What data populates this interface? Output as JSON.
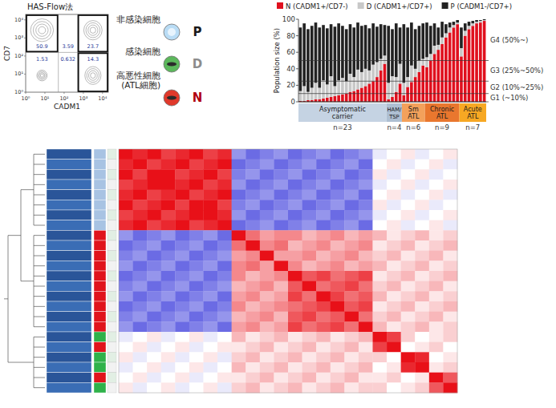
{
  "chart_data": [
    {
      "type": "flow_cytometry",
      "title": "HAS-Flow法",
      "x_label": "CADM1",
      "y_label": "CD7",
      "xlim": [
        0,
        4.3
      ],
      "ylim": [
        0,
        4.3
      ],
      "xticks": [
        {
          "value": 0,
          "label": "10⁰"
        },
        {
          "value": 1,
          "label": "10¹"
        },
        {
          "value": 2,
          "label": "10²"
        },
        {
          "value": 3,
          "label": "10³"
        },
        {
          "value": 4,
          "label": "10⁴"
        }
      ],
      "yticks": [
        {
          "value": 0,
          "label": "10⁰"
        },
        {
          "value": 1,
          "label": "10¹"
        },
        {
          "value": 2,
          "label": "10²"
        },
        {
          "value": 3,
          "label": "10³"
        },
        {
          "value": 4,
          "label": "10⁴"
        }
      ],
      "x_gates": [
        1.7,
        2.7
      ],
      "y_gate": 2.2,
      "gate_values": [
        [
          50.9,
          3.59,
          23.7
        ],
        [
          1.53,
          0.632,
          14.3
        ]
      ],
      "populations": [
        {
          "label": "非感染細胞",
          "letter": "P",
          "color": "#b9dcf5"
        },
        {
          "label": "感染細胞",
          "letter": "D",
          "color": "#5cb85c"
        },
        {
          "label": "高悪性細胞(ATL細胞)",
          "letter": "N",
          "color": "#e0392b"
        }
      ]
    },
    {
      "type": "bar",
      "stacked": true,
      "legend": "top",
      "grid": false,
      "ylabel": "Population size (%)",
      "ylim": [
        0,
        100
      ],
      "yticks": [
        0,
        20,
        40,
        60,
        80,
        100
      ],
      "categories": [
        null,
        null,
        null,
        null,
        null,
        null,
        null,
        null,
        null,
        null,
        null,
        null,
        null,
        null,
        null,
        null,
        null,
        null,
        null,
        null,
        null,
        null,
        null,
        null,
        null,
        null,
        null,
        null,
        null,
        null,
        null,
        null,
        null,
        null,
        null,
        null,
        null,
        null,
        null,
        null,
        null,
        null,
        null,
        null,
        null,
        null,
        null,
        null,
        null
      ],
      "series": [
        {
          "name": "N (CADM1+/CD7-)",
          "color": "#e0101e",
          "values": [
            1,
            1,
            2,
            2,
            3,
            3,
            4,
            5,
            6,
            7,
            8,
            9,
            10,
            12,
            13,
            15,
            17,
            19,
            22,
            25,
            30,
            38,
            46,
            3,
            6,
            12,
            22,
            8,
            18,
            24,
            30,
            36,
            44,
            42,
            50,
            58,
            63,
            70,
            78,
            84,
            90,
            94,
            55,
            80,
            88,
            92,
            95,
            96,
            98
          ]
        },
        {
          "name": "D (CADM1+/CD7+)",
          "color": "#c8c8c8",
          "values": [
            12,
            18,
            10,
            15,
            20,
            14,
            22,
            16,
            25,
            12,
            18,
            20,
            15,
            22,
            17,
            24,
            19,
            21,
            16,
            20,
            18,
            14,
            10,
            20,
            25,
            18,
            24,
            15,
            12,
            20,
            10,
            14,
            8,
            12,
            8,
            10,
            6,
            8,
            5,
            6,
            3,
            2,
            10,
            6,
            4,
            3,
            2,
            2,
            1
          ]
        },
        {
          "name": "P (CADM1-/CD7+)",
          "color": "#222222",
          "values": [
            77,
            76,
            76,
            75,
            73,
            73,
            67,
            68,
            63,
            72,
            69,
            63,
            63,
            60,
            60,
            57,
            56,
            53,
            51,
            50,
            43,
            42,
            37,
            69,
            57,
            65,
            44,
            71,
            60,
            52,
            48,
            42,
            43,
            42,
            34,
            27,
            21,
            19,
            11,
            6,
            4,
            3,
            25,
            9,
            5,
            3,
            2,
            1,
            1
          ]
        }
      ],
      "bands": [
        {
          "from": 50,
          "to": 100,
          "label": "G4 (50%~)"
        },
        {
          "from": 25,
          "to": 50,
          "label": "G3 (25%~50%)"
        },
        {
          "from": 10,
          "to": 25,
          "label": "G2 (10%~25%)"
        },
        {
          "from": 0,
          "to": 10,
          "label": "G1 (~10%)"
        }
      ],
      "groups": [
        {
          "label": "Asymptomatic carrier",
          "n_label": "n=23",
          "count": 23,
          "color": "#c5d3e3"
        },
        {
          "label": "HAM/TSP",
          "n_label": "n=4",
          "count": 4,
          "color": "#aebfd2"
        },
        {
          "label": "Sm ATL",
          "n_label": "n=6",
          "count": 6,
          "color": "#f3a15b"
        },
        {
          "label": "Chronic ATL",
          "n_label": "n=9",
          "count": 9,
          "color": "#e9772e"
        },
        {
          "label": "Acute ATL",
          "n_label": "n=7",
          "count": 7,
          "color": "#f7a823"
        }
      ]
    },
    {
      "type": "heatmap",
      "tick_labels": false,
      "color_range": [
        -1,
        1
      ],
      "row_clusters": [
        8,
        10,
        6
      ],
      "row_colors": [
        "#a8c3e3",
        "#a8c3e3",
        "#a8c3e3",
        "#a8c3e3",
        "#a8c3e3",
        "#a8c3e3",
        "#a8c3e3",
        "#a8c3e3",
        "#e0141c",
        "#e0141c",
        "#e0141c",
        "#e0141c",
        "#e0141c",
        "#e0141c",
        "#e0141c",
        "#e0141c",
        "#e0141c",
        "#e0141c",
        "#2fb24a",
        "#e0141c",
        "#2fb24a",
        "#2fb24a",
        "#e0141c",
        "#2fb24a"
      ],
      "cells": [
        [
          1,
          0.9,
          1,
          0.8,
          0.9,
          1,
          0.8,
          0.9,
          -0.5,
          -0.7,
          -0.6,
          -0.5,
          -0.7,
          -0.6,
          -0.5,
          -0.7,
          -0.6,
          -0.5,
          -0.1,
          0,
          0.1,
          -0.1,
          0,
          0.1
        ],
        [
          0.9,
          1,
          0.8,
          0.9,
          1,
          0.8,
          0.9,
          1,
          -0.7,
          -0.6,
          -0.5,
          -0.7,
          -0.6,
          -0.5,
          -0.7,
          -0.6,
          -0.5,
          -0.7,
          0,
          0.1,
          -0.1,
          0,
          0.1,
          -0.1
        ],
        [
          1,
          0.8,
          1,
          1,
          0.8,
          0.9,
          1,
          0.8,
          -0.6,
          -0.5,
          -0.7,
          -0.6,
          -0.5,
          -0.7,
          -0.6,
          -0.5,
          -0.7,
          -0.6,
          0.1,
          -0.1,
          0,
          0.1,
          -0.1,
          0
        ],
        [
          0.8,
          0.9,
          1,
          1,
          0.9,
          1,
          0.8,
          0.9,
          -0.5,
          -0.7,
          -0.6,
          -0.5,
          -0.7,
          -0.6,
          -0.5,
          -0.7,
          -0.6,
          -0.5,
          -0.1,
          0,
          0.1,
          -0.1,
          0,
          0.1
        ],
        [
          0.9,
          1,
          0.8,
          0.9,
          1,
          0.8,
          0.9,
          1,
          -0.7,
          -0.6,
          -0.5,
          -0.7,
          -0.6,
          -0.5,
          -0.7,
          -0.6,
          -0.5,
          -0.7,
          0,
          0.1,
          -0.1,
          0,
          0.1,
          -0.1
        ],
        [
          1,
          0.8,
          0.9,
          1,
          0.8,
          1,
          1,
          0.8,
          -0.6,
          -0.5,
          -0.7,
          -0.6,
          -0.5,
          -0.7,
          -0.6,
          -0.5,
          -0.7,
          -0.6,
          0.1,
          -0.1,
          0,
          0.1,
          -0.1,
          0
        ],
        [
          0.8,
          0.9,
          1,
          0.8,
          0.9,
          1,
          1,
          0.9,
          -0.5,
          -0.7,
          -0.6,
          -0.5,
          -0.7,
          -0.6,
          -0.5,
          -0.7,
          -0.6,
          -0.5,
          -0.1,
          0,
          0.1,
          -0.1,
          0,
          0.1
        ],
        [
          0.9,
          1,
          0.8,
          0.9,
          1,
          0.8,
          0.9,
          1,
          -0.7,
          -0.6,
          -0.5,
          -0.7,
          -0.6,
          -0.5,
          -0.7,
          -0.6,
          -0.5,
          -0.7,
          0,
          0.1,
          -0.1,
          0,
          0.1,
          -0.1
        ],
        [
          -0.5,
          -0.7,
          -0.6,
          -0.5,
          -0.7,
          -0.6,
          -0.5,
          -0.7,
          1,
          0.6,
          0.4,
          0.5,
          0.5,
          0.3,
          0.4,
          0.5,
          0.3,
          0.4,
          0.3,
          0.1,
          0.2,
          0.3,
          0.1,
          0.2
        ],
        [
          -0.7,
          -0.6,
          -0.5,
          -0.7,
          -0.6,
          -0.5,
          -0.7,
          -0.6,
          0.6,
          1,
          0.5,
          0.6,
          0.3,
          0.4,
          0.5,
          0.3,
          0.4,
          0.5,
          0.1,
          0.2,
          0.3,
          0.1,
          0.2,
          0.3
        ],
        [
          -0.6,
          -0.5,
          -0.7,
          -0.6,
          -0.5,
          -0.7,
          -0.6,
          -0.5,
          0.4,
          0.5,
          1,
          0.4,
          0.4,
          0.5,
          0.3,
          0.4,
          0.5,
          0.3,
          0.2,
          0.3,
          0.1,
          0.2,
          0.3,
          0.1
        ],
        [
          -0.5,
          -0.7,
          -0.6,
          -0.5,
          -0.7,
          -0.6,
          -0.5,
          -0.7,
          0.5,
          0.6,
          0.4,
          1,
          0.5,
          0.3,
          0.4,
          0.5,
          0.3,
          0.4,
          0.3,
          0.1,
          0.2,
          0.3,
          0.1,
          0.2
        ],
        [
          -0.7,
          -0.6,
          -0.5,
          -0.7,
          -0.6,
          -0.5,
          -0.7,
          -0.6,
          0.5,
          0.3,
          0.4,
          0.5,
          1,
          0.7,
          0.8,
          0.6,
          0.7,
          0.8,
          0.1,
          0.2,
          0.3,
          0.1,
          0.2,
          0.3
        ],
        [
          -0.6,
          -0.5,
          -0.7,
          -0.6,
          -0.5,
          -0.7,
          -0.6,
          -0.5,
          0.3,
          0.4,
          0.5,
          0.3,
          0.7,
          1,
          0.6,
          0.7,
          0.8,
          0.6,
          0.2,
          0.3,
          0.1,
          0.2,
          0.3,
          0.1
        ],
        [
          -0.5,
          -0.7,
          -0.6,
          -0.5,
          -0.7,
          -0.6,
          -0.5,
          -0.7,
          0.4,
          0.5,
          0.3,
          0.4,
          0.8,
          0.6,
          1,
          0.8,
          0.6,
          0.7,
          0.3,
          0.1,
          0.2,
          0.3,
          0.1,
          0.2
        ],
        [
          -0.7,
          -0.6,
          -0.5,
          -0.7,
          -0.6,
          -0.5,
          -0.7,
          -0.6,
          0.5,
          0.3,
          0.4,
          0.5,
          0.6,
          0.7,
          0.8,
          1,
          0.7,
          0.8,
          0.1,
          0.2,
          0.3,
          0.1,
          0.2,
          0.3
        ],
        [
          -0.6,
          -0.5,
          -0.7,
          -0.6,
          -0.5,
          -0.7,
          -0.6,
          -0.5,
          0.3,
          0.4,
          0.5,
          0.3,
          0.7,
          0.8,
          0.6,
          0.7,
          1,
          0.6,
          0.2,
          0.3,
          0.1,
          0.2,
          0.3,
          0.1
        ],
        [
          -0.5,
          -0.7,
          -0.6,
          -0.5,
          -0.7,
          -0.6,
          -0.5,
          -0.7,
          0.4,
          0.5,
          0.3,
          0.4,
          0.8,
          0.6,
          0.7,
          0.8,
          0.6,
          1,
          0.3,
          0.1,
          0.2,
          0.3,
          0.1,
          0.2
        ],
        [
          -0.1,
          0,
          0.1,
          -0.1,
          0,
          0.1,
          -0.1,
          0,
          0.3,
          0.1,
          0.2,
          0.3,
          0.1,
          0.2,
          0.3,
          0.1,
          0.2,
          0.3,
          1,
          0.8,
          0.2,
          0,
          0.1,
          0.2
        ],
        [
          0,
          0.1,
          -0.1,
          0,
          0.1,
          -0.1,
          0,
          0.1,
          0.1,
          0.2,
          0.3,
          0.1,
          0.2,
          0.3,
          0.1,
          0.2,
          0.3,
          0.1,
          0.8,
          1,
          0,
          0.1,
          0.2,
          0
        ],
        [
          0.1,
          -0.1,
          0,
          0.1,
          -0.1,
          0,
          0.1,
          -0.1,
          0.2,
          0.3,
          0.1,
          0.2,
          0.3,
          0.1,
          0.2,
          0.3,
          0.1,
          0.2,
          0.2,
          0,
          1,
          0.9,
          0,
          0.1
        ],
        [
          -0.1,
          0,
          0.1,
          -0.1,
          0,
          0.1,
          -0.1,
          0,
          0.3,
          0.1,
          0.2,
          0.3,
          0.1,
          0.2,
          0.3,
          0.1,
          0.2,
          0.3,
          0,
          0.1,
          0.9,
          1,
          0.1,
          0.2
        ],
        [
          0,
          0.1,
          -0.1,
          0,
          0.1,
          -0.1,
          0,
          0.1,
          0.1,
          0.2,
          0.3,
          0.1,
          0.2,
          0.3,
          0.1,
          0.2,
          0.3,
          0.1,
          0.1,
          0.2,
          0,
          0.1,
          1,
          0.7
        ],
        [
          0.1,
          -0.1,
          0,
          0.1,
          -0.1,
          0,
          0.1,
          -0.1,
          0.2,
          0.3,
          0.1,
          0.2,
          0.3,
          0.1,
          0.2,
          0.3,
          0.1,
          0.2,
          0.2,
          0,
          0.1,
          0.2,
          0.7,
          1
        ]
      ]
    }
  ]
}
